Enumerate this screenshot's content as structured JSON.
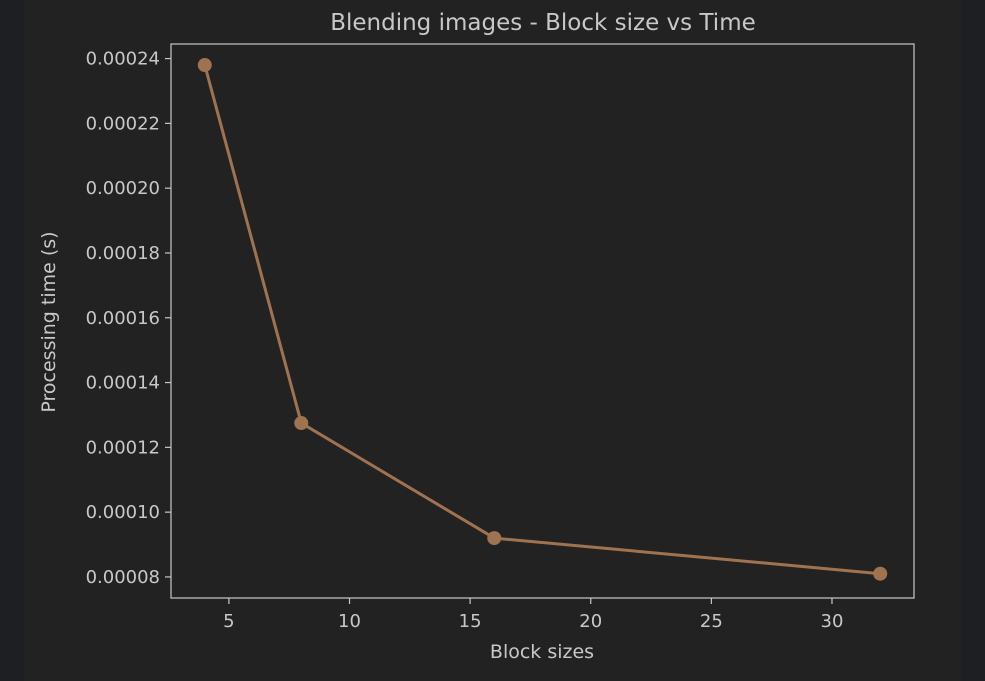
{
  "chart_data": {
    "type": "line",
    "title": "Blending images - Block size vs Time",
    "xlabel": "Block sizes",
    "ylabel": "Processing time (s)",
    "x": [
      4,
      8,
      16,
      32
    ],
    "series": [
      {
        "values": [
          0.000238,
          0.0001275,
          9.2e-05,
          8.1e-05
        ],
        "color": "#a07350"
      }
    ],
    "xlim": [
      2.6,
      33.4
    ],
    "ylim": [
      7.35e-05,
      0.0002445
    ],
    "xticks": [
      5,
      10,
      15,
      20,
      25,
      30
    ],
    "xtick_labels": [
      "5",
      "10",
      "15",
      "20",
      "25",
      "30"
    ],
    "yticks": [
      8e-05,
      0.0001,
      0.00012,
      0.00014,
      0.00016,
      0.00018,
      0.0002,
      0.00022,
      0.00024
    ],
    "ytick_labels": [
      "0.00008",
      "0.00010",
      "0.00012",
      "0.00014",
      "0.00016",
      "0.00018",
      "0.00020",
      "0.00022",
      "0.00024"
    ],
    "grid": false,
    "colors": {
      "background": "#222222",
      "outer_background": "#1e1f22",
      "axes": "#c8c8c8",
      "text": "#c8c8c8"
    }
  }
}
